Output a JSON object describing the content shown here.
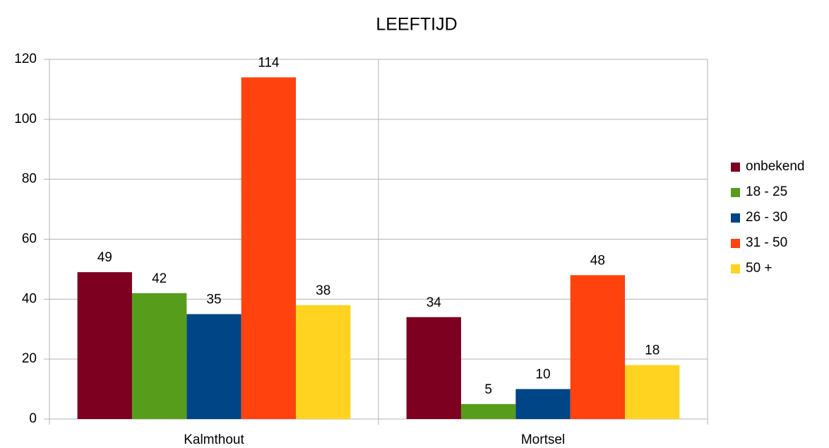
{
  "chart_data": {
    "type": "bar",
    "title": "LEEFTIJD",
    "categories": [
      "Kalmthout",
      "Mortsel"
    ],
    "series": [
      {
        "name": "onbekend",
        "color": "#7e0021",
        "values": [
          49,
          34
        ]
      },
      {
        "name": "18 - 25",
        "color": "#579d1c",
        "values": [
          42,
          5
        ]
      },
      {
        "name": "26 - 30",
        "color": "#004586",
        "values": [
          35,
          10
        ]
      },
      {
        "name": "31 - 50",
        "color": "#ff420e",
        "values": [
          114,
          48
        ]
      },
      {
        "name": "50 +",
        "color": "#ffd320",
        "values": [
          38,
          18
        ]
      }
    ],
    "ylim": [
      0,
      120
    ],
    "yticks": [
      0,
      20,
      40,
      60,
      80,
      100,
      120
    ],
    "grid": true,
    "legend": "right"
  }
}
